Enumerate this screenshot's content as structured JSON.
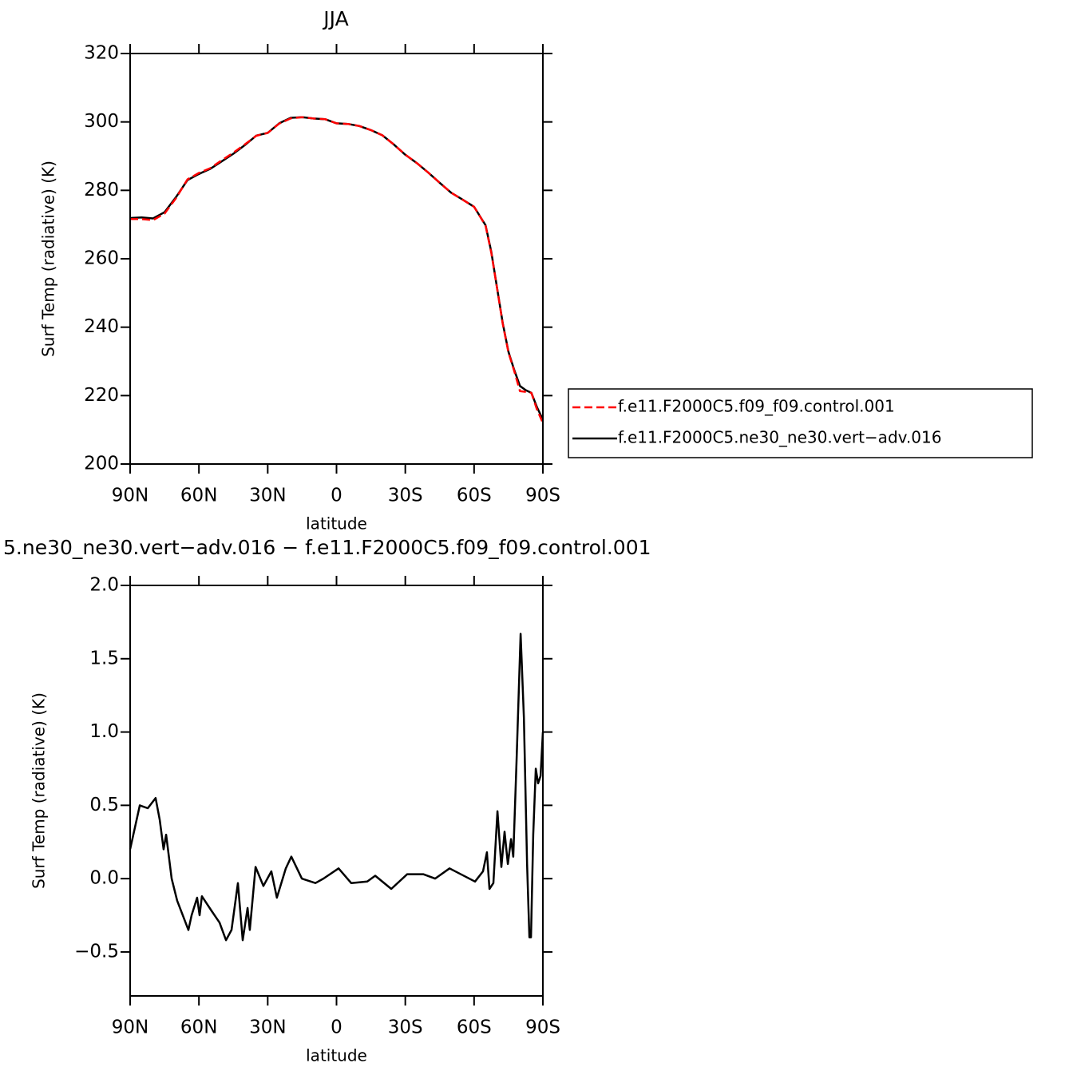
{
  "chart_data": [
    {
      "type": "line",
      "title": "JJA",
      "x_label": "latitude",
      "y_label": "Surf Temp (radiative) (K)",
      "x": [
        90,
        85,
        80,
        75,
        70,
        65,
        60,
        55,
        50,
        45,
        40,
        35,
        30,
        25,
        20,
        15,
        10,
        5,
        0,
        -5,
        -10,
        -15,
        -20,
        -25,
        -30,
        -35,
        -40,
        -45,
        -50,
        -55,
        -60,
        -65,
        -67.5,
        -70,
        -72.5,
        -75,
        -77.5,
        -80,
        -82.5,
        -85,
        -87.5,
        -90
      ],
      "series": [
        {
          "name": "f.e11.F2000C5.f09_f09.control.001",
          "color": "#ff0000",
          "dashed": true,
          "values": [
            271.6,
            271.6,
            271.3,
            273.2,
            277.7,
            283.2,
            285.1,
            286.5,
            288.8,
            291.0,
            293.4,
            295.95,
            296.8,
            299.5,
            301.05,
            301.4,
            301.0,
            300.8,
            299.6,
            299.4,
            298.8,
            297.6,
            296.1,
            293.4,
            290.45,
            288.0,
            285.2,
            282.2,
            279.3,
            277.25,
            275.2,
            269.7,
            261.7,
            251.4,
            241.0,
            232.6,
            227.2,
            221.3,
            221.1,
            220.8,
            215.8,
            212
          ]
        },
        {
          "name": "f.e11.F2000C5.ne30_ne30.vert−adv.016",
          "color": "#000000",
          "dashed": false,
          "values": [
            271.9,
            272.1,
            271.8,
            273.6,
            278,
            283,
            284.8,
            286.3,
            288.5,
            290.7,
            293.2,
            296,
            296.8,
            299.6,
            301.2,
            301.4,
            301.0,
            300.8,
            299.6,
            299.4,
            298.8,
            297.6,
            296.1,
            293.4,
            290.4,
            288.0,
            285.2,
            282.2,
            279.3,
            277.3,
            275.2,
            269.8,
            262.0,
            251.5,
            241.2,
            232.8,
            227.5,
            222.8,
            221.6,
            220.8,
            216.5,
            213
          ]
        }
      ],
      "xlim": [
        90,
        -90
      ],
      "xticks": [
        {
          "value": 90,
          "label": "90N"
        },
        {
          "value": 60,
          "label": "60N"
        },
        {
          "value": 30,
          "label": "30N"
        },
        0,
        {
          "value": -30,
          "label": "30S"
        },
        {
          "value": -60,
          "label": "60S"
        },
        {
          "value": -90,
          "label": "90S"
        }
      ],
      "ylim": [
        200,
        320
      ],
      "yticks": [
        200,
        220,
        240,
        260,
        280,
        300,
        320
      ],
      "legend": "right"
    },
    {
      "type": "line",
      "title": "5.ne30_ne30.vert−adv.016 − f.e11.F2000C5.f09_f09.control.001",
      "x_label": "latitude",
      "y_label": "Surf Temp (radiative) (K)",
      "x": [
        90,
        85.8,
        82.3,
        78.9,
        77.1,
        75.4,
        74.3,
        71.9,
        69.5,
        64.6,
        63.2,
        60.8,
        59.7,
        58.7,
        54.5,
        51,
        48.2,
        45.8,
        43,
        40.9,
        38.8,
        37.8,
        35.3,
        31.9,
        28.4,
        26,
        22.1,
        19.7,
        15.1,
        9.2,
        5.7,
        -0.9,
        -6.4,
        -13.4,
        -16.9,
        -23.9,
        -30.8,
        -37.8,
        -43,
        -49.3,
        -60.4,
        -63.9,
        -65.6,
        -66.7,
        -68.4,
        -70.2,
        -71.9,
        -73.3,
        -74.7,
        -76.1,
        -77.1,
        -78.5,
        -80.3,
        -81.7,
        -83.1,
        -84.1,
        -84.8,
        -85.8,
        -86.9,
        -87.9,
        -89,
        -90
      ],
      "series": [
        {
          "name": "f.e11.F2000C5.ne30_ne30.vert−adv.016",
          "color": "#000000",
          "dashed": false,
          "values": [
            0.2,
            0.5,
            0.48,
            0.55,
            0.4,
            0.2,
            0.3,
            0.0,
            -0.15,
            -0.35,
            -0.25,
            -0.13,
            -0.25,
            -0.12,
            -0.22,
            -0.3,
            -0.42,
            -0.35,
            -0.03,
            -0.42,
            -0.2,
            -0.35,
            0.08,
            -0.05,
            0.05,
            -0.13,
            0.07,
            0.15,
            0.0,
            -0.03,
            0.0,
            0.07,
            -0.03,
            -0.02,
            0.02,
            -0.07,
            0.03,
            0.03,
            0.0,
            0.07,
            -0.02,
            0.05,
            0.18,
            -0.07,
            -0.03,
            0.46,
            0.08,
            0.32,
            0.1,
            0.27,
            0.15,
            0.8,
            1.67,
            1.1,
            0.1,
            -0.4,
            -0.4,
            0.3,
            0.75,
            0.65,
            0.7,
            1.0
          ]
        }
      ],
      "xlim": [
        90,
        -90
      ],
      "xticks": [
        {
          "value": 90,
          "label": "90N"
        },
        {
          "value": 60,
          "label": "60N"
        },
        {
          "value": 30,
          "label": "30N"
        },
        0,
        {
          "value": -30,
          "label": "30S"
        },
        {
          "value": -60,
          "label": "60S"
        },
        {
          "value": -90,
          "label": "90S"
        }
      ],
      "ylim": [
        -0.8,
        2.0
      ],
      "yticks": [
        {
          "value": -0.5,
          "label": "−0.5"
        },
        {
          "value": 0,
          "label": "0.0"
        },
        0.5,
        {
          "value": 1,
          "label": "1.0"
        },
        1.5,
        {
          "value": 2,
          "label": "2.0"
        }
      ]
    }
  ]
}
